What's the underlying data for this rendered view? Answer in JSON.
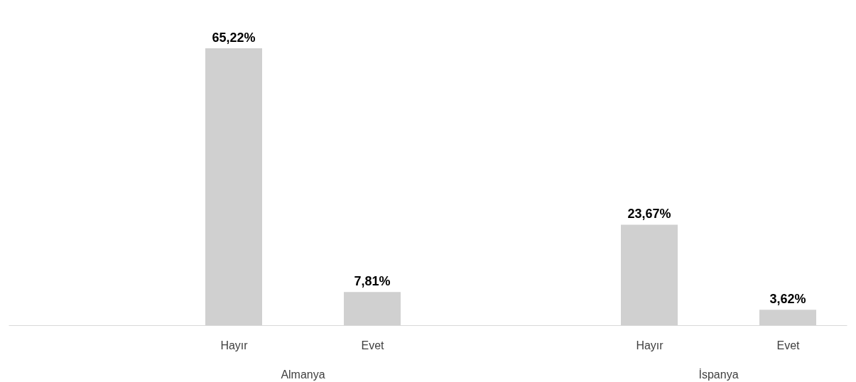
{
  "chart_data": {
    "type": "bar",
    "categories": [
      "Hayır",
      "Evet",
      "Hayır",
      "Evet"
    ],
    "values": [
      65.22,
      7.81,
      23.67,
      3.62
    ],
    "value_labels": [
      "65,22%",
      "7,81%",
      "23,67%",
      "3,62%"
    ],
    "color": "#d0d0d0",
    "annotations": [
      "Almanya",
      "İspanya"
    ]
  }
}
